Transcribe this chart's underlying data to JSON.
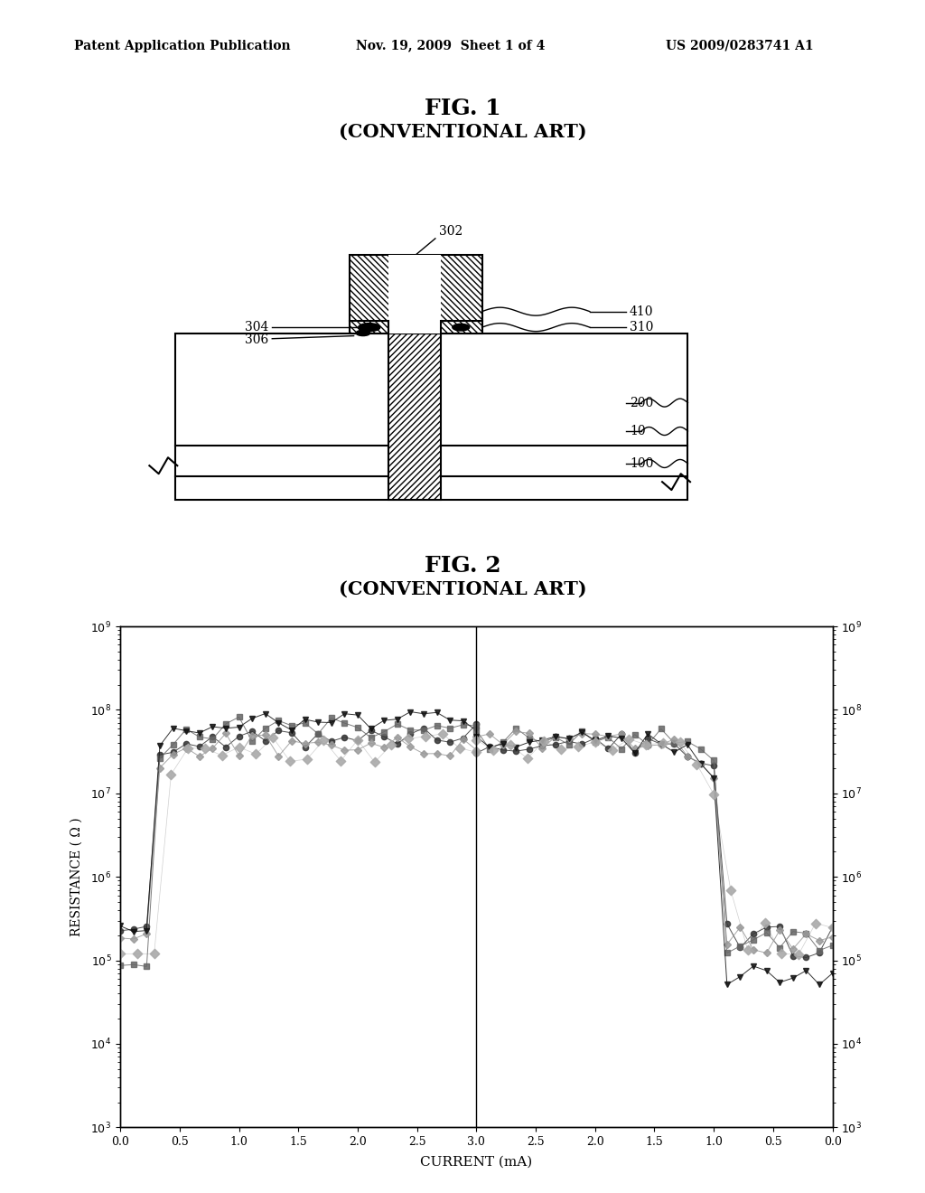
{
  "header_left": "Patent Application Publication",
  "header_mid": "Nov. 19, 2009  Sheet 1 of 4",
  "header_right": "US 2009/0283741 A1",
  "fig1_title": "FIG. 1",
  "fig1_subtitle": "(CONVENTIONAL ART)",
  "fig2_title": "FIG. 2",
  "fig2_subtitle": "(CONVENTIONAL ART)",
  "ylabel": "RESISTANCE ( Ω )",
  "xlabel": "CURRENT (mA)",
  "bg_color": "#ffffff",
  "text_color": "#000000"
}
